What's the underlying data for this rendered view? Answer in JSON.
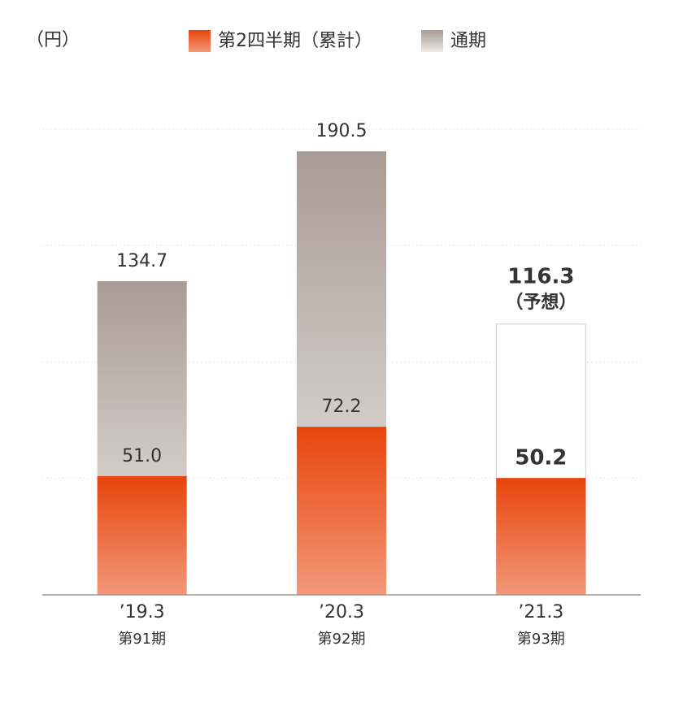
{
  "chart_data": {
    "type": "bar",
    "unit_label": "（円）",
    "categories": [
      "’19.3",
      "’20.3",
      "’21.3"
    ],
    "category_sublabels": [
      "第91期",
      "第92期",
      "第93期"
    ],
    "series": [
      {
        "name": "通期",
        "color": "#a89c94",
        "values": [
          134.7,
          190.5,
          116.3
        ],
        "value_labels": [
          "134.7",
          "190.5",
          "116.3"
        ],
        "forecast": [
          false,
          false,
          true
        ]
      },
      {
        "name": "第2四半期（累計）",
        "color": "#e8440c",
        "values": [
          51.0,
          72.2,
          50.2
        ],
        "value_labels": [
          "51.0",
          "72.2",
          "50.2"
        ],
        "forecast": [
          false,
          false,
          true
        ]
      }
    ],
    "forecast_label": "（予想）",
    "ylim": [
      0,
      200
    ],
    "yticks": [
      0,
      50,
      100,
      150,
      200
    ],
    "grid": true
  }
}
